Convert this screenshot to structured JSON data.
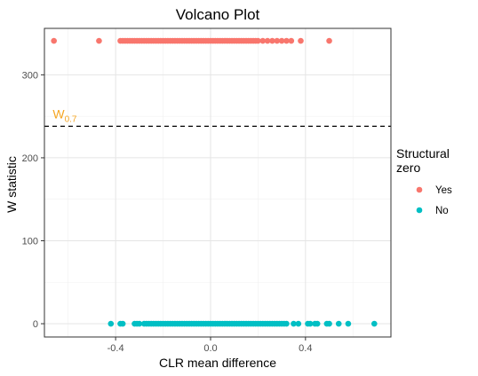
{
  "chart_data": {
    "type": "scatter",
    "title": "Volcano Plot",
    "xlabel": "CLR mean difference",
    "ylabel": "W statistic",
    "xlim": [
      -0.7,
      0.76
    ],
    "ylim": [
      -16,
      356
    ],
    "x_ticks": [
      -0.4,
      0.0,
      0.4
    ],
    "x_tick_labels": [
      "-0.4",
      "0.0",
      "0.4"
    ],
    "y_ticks": [
      0,
      100,
      200,
      300
    ],
    "y_tick_labels": [
      "0",
      "100",
      "200",
      "300"
    ],
    "grid": true,
    "legend": {
      "title_lines": [
        "Structural",
        "zero"
      ],
      "position": "right",
      "entries": [
        {
          "label": "Yes",
          "color": "#F8766D"
        },
        {
          "label": "No",
          "color": "#00BFC4"
        }
      ]
    },
    "threshold": {
      "y": 238,
      "style": "dashed",
      "label_main": "W",
      "label_sub": "0.7",
      "label_color": "#F5A623"
    },
    "series": [
      {
        "name": "Yes",
        "color": "#F8766D",
        "y": 341,
        "x": [
          -0.66,
          -0.47,
          -0.38,
          -0.37,
          -0.36,
          -0.35,
          -0.34,
          -0.33,
          -0.32,
          -0.31,
          -0.3,
          -0.29,
          -0.28,
          -0.27,
          -0.26,
          -0.25,
          -0.24,
          -0.23,
          -0.22,
          -0.21,
          -0.2,
          -0.19,
          -0.18,
          -0.17,
          -0.16,
          -0.15,
          -0.14,
          -0.13,
          -0.12,
          -0.11,
          -0.1,
          -0.09,
          -0.08,
          -0.07,
          -0.06,
          -0.05,
          -0.04,
          -0.03,
          -0.02,
          -0.01,
          0.0,
          0.01,
          0.02,
          0.03,
          0.04,
          0.05,
          0.06,
          0.07,
          0.08,
          0.09,
          0.1,
          0.11,
          0.12,
          0.13,
          0.14,
          0.15,
          0.16,
          0.17,
          0.18,
          0.19,
          0.2,
          0.22,
          0.24,
          0.26,
          0.28,
          0.3,
          0.32,
          0.34,
          0.38,
          0.5
        ]
      },
      {
        "name": "No",
        "color": "#00BFC4",
        "y": 0,
        "x": [
          -0.42,
          -0.38,
          -0.37,
          -0.32,
          -0.31,
          -0.3,
          -0.28,
          -0.27,
          -0.26,
          -0.25,
          -0.24,
          -0.23,
          -0.22,
          -0.21,
          -0.2,
          -0.19,
          -0.18,
          -0.17,
          -0.16,
          -0.15,
          -0.14,
          -0.13,
          -0.12,
          -0.11,
          -0.1,
          -0.09,
          -0.08,
          -0.07,
          -0.06,
          -0.05,
          -0.04,
          -0.03,
          -0.02,
          -0.01,
          0.0,
          0.01,
          0.02,
          0.03,
          0.04,
          0.05,
          0.06,
          0.07,
          0.08,
          0.09,
          0.1,
          0.11,
          0.12,
          0.13,
          0.14,
          0.15,
          0.16,
          0.17,
          0.18,
          0.19,
          0.2,
          0.21,
          0.22,
          0.23,
          0.24,
          0.25,
          0.26,
          0.27,
          0.28,
          0.29,
          0.3,
          0.31,
          0.32,
          0.35,
          0.37,
          0.41,
          0.42,
          0.44,
          0.45,
          0.49,
          0.5,
          0.54,
          0.58,
          0.69
        ]
      }
    ]
  }
}
